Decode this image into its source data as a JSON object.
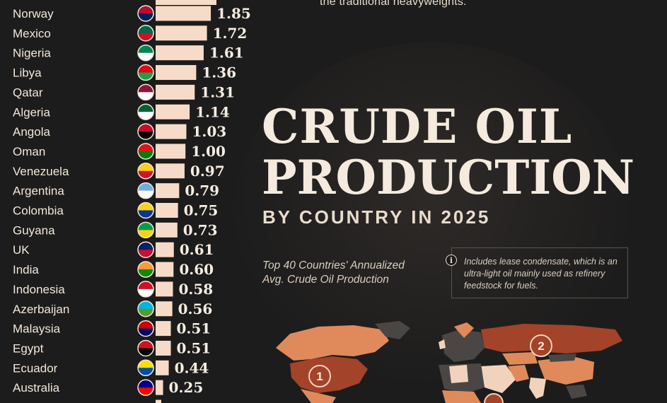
{
  "intro_text": "the traditional heavyweights.",
  "title_line1": "CRUDE OIL",
  "title_line2": "PRODUCTION",
  "subtitle": "BY COUNTRY IN 2025",
  "description_line1": "Top 40 Countries' Annualized",
  "description_line2": "Avg. Crude Oil Production",
  "note_icon": "info-icon",
  "note_text": "Includes lease condensate, which is an ultra-light oil mainly used as refinery feedstock for fuels.",
  "map_markers": [
    "1",
    "2"
  ],
  "colors": {
    "background": "#1c1c1c",
    "bar": "#f6dcc8",
    "text": "#f2e6d8",
    "map_dark": "#4a4644",
    "map_orange": "#e08a5c",
    "map_rust": "#a3432a",
    "map_light": "#f1d3bd"
  },
  "chart_data": {
    "type": "bar",
    "orientation": "horizontal",
    "categories": [
      "Norway",
      "Mexico",
      "Nigeria",
      "Libya",
      "Qatar",
      "Algeria",
      "Angola",
      "Oman",
      "Venezuela",
      "Argentina",
      "Colombia",
      "Guyana",
      "UK",
      "India",
      "Indonesia",
      "Azerbaijan",
      "Malaysia",
      "Egypt",
      "Ecuador",
      "Australia"
    ],
    "values": [
      1.85,
      1.72,
      1.61,
      1.36,
      1.31,
      1.14,
      1.03,
      1.0,
      0.97,
      0.79,
      0.75,
      0.73,
      0.61,
      0.6,
      0.58,
      0.56,
      0.51,
      0.51,
      0.44,
      0.25
    ],
    "value_labels": [
      "1.85",
      "1.72",
      "1.61",
      "1.36",
      "1.31",
      "1.14",
      "1.03",
      "1.00",
      "0.97",
      "0.79",
      "0.75",
      "0.73",
      "0.61",
      "0.60",
      "0.58",
      "0.56",
      "0.51",
      "0.51",
      "0.44",
      "0.25"
    ],
    "flag_icons": [
      "norway-flag-icon",
      "mexico-flag-icon",
      "nigeria-flag-icon",
      "libya-flag-icon",
      "qatar-flag-icon",
      "algeria-flag-icon",
      "angola-flag-icon",
      "oman-flag-icon",
      "venezuela-flag-icon",
      "argentina-flag-icon",
      "colombia-flag-icon",
      "guyana-flag-icon",
      "uk-flag-icon",
      "india-flag-icon",
      "indonesia-flag-icon",
      "azerbaijan-flag-icon",
      "malaysia-flag-icon",
      "egypt-flag-icon",
      "ecuador-flag-icon",
      "australia-flag-icon"
    ],
    "xlabel": "",
    "ylabel": "",
    "grid": false,
    "legend": "none"
  }
}
